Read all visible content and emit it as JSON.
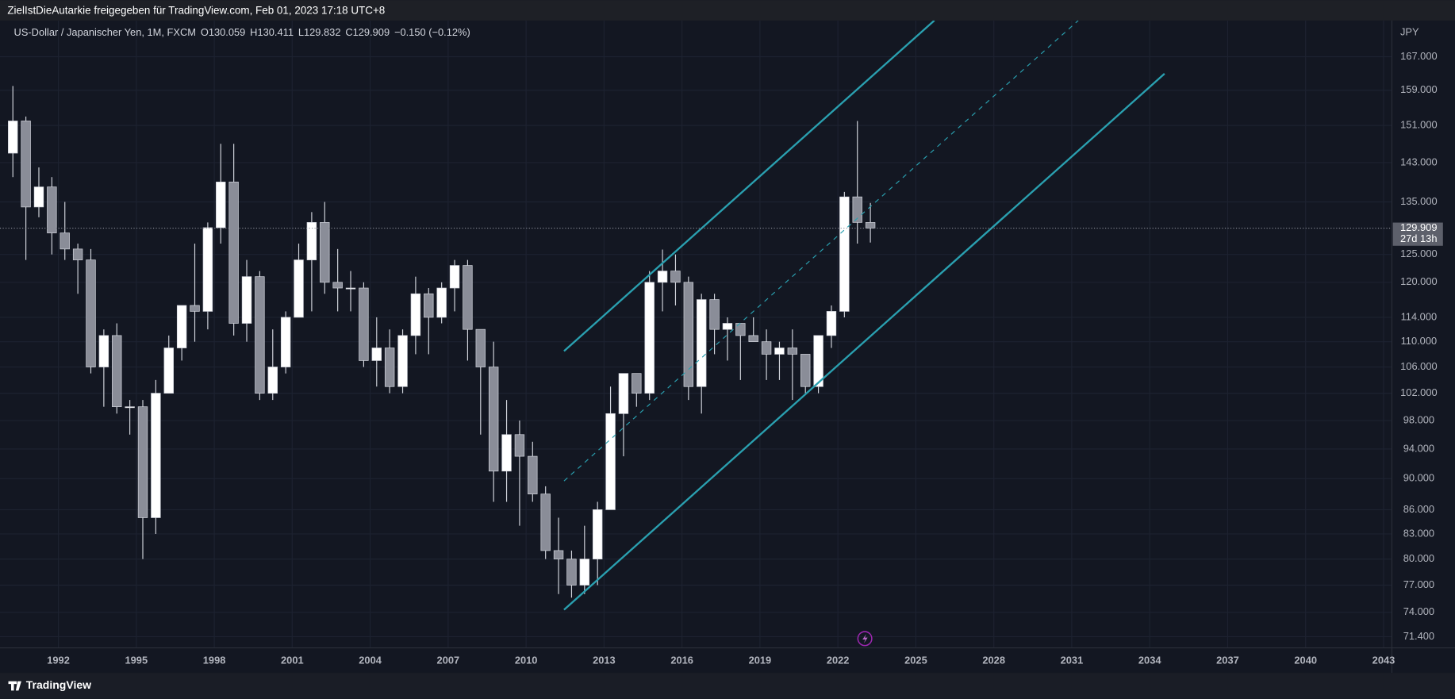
{
  "chart_data": {
    "type": "candlestick",
    "share_text": "ZielIstDieAutarkie freigegeben für TradingView.com, Feb 01, 2023 17:18 UTC+8",
    "symbol": "US-Dollar / Japanischer Yen, 1M, FXCM",
    "ohlc_legend": [
      {
        "label": "O",
        "value": 130.059
      },
      {
        "label": "H",
        "value": 130.411
      },
      {
        "label": "L",
        "value": 129.832
      },
      {
        "label": "C",
        "value": 129.909
      }
    ],
    "change": "−0.150 (−0.12%)",
    "currency": "JPY",
    "last_price": 129.909,
    "countdown": "27d 13h",
    "brand": "TradingView",
    "log_scale": true,
    "grid": true,
    "up_color": "#ffffff",
    "down_color": "#8a8d98",
    "trendline_color": "#2aa0b0",
    "xlim": [
      1990.04,
      2043.32
    ],
    "ylim": [
      70.24,
      176.1
    ],
    "xticks": [
      1992,
      1995,
      1998,
      2001,
      2004,
      2007,
      2010,
      2013,
      2016,
      2019,
      2022,
      2025,
      2028,
      2031,
      2034,
      2037,
      2040,
      2043
    ],
    "yticks": [
      {
        "value": 71.4,
        "label": "71.400"
      },
      {
        "value": 74,
        "label": "74.000"
      },
      {
        "value": 77,
        "label": "77.000"
      },
      {
        "value": 80,
        "label": "80.000"
      },
      {
        "value": 83,
        "label": "83.000"
      },
      {
        "value": 86,
        "label": "86.000"
      },
      {
        "value": 90,
        "label": "90.000"
      },
      {
        "value": 94,
        "label": "94.000"
      },
      {
        "value": 98,
        "label": "98.000"
      },
      {
        "value": 102,
        "label": "102.000"
      },
      {
        "value": 106,
        "label": "106.000"
      },
      {
        "value": 110,
        "label": "110.000"
      },
      {
        "value": 114,
        "label": "114.000"
      },
      {
        "value": 120,
        "label": "120.000"
      },
      {
        "value": 125,
        "label": "125.000"
      },
      {
        "value": 135,
        "label": "135.000"
      },
      {
        "value": 143,
        "label": "143.000"
      },
      {
        "value": 151,
        "label": "151.000"
      },
      {
        "value": 159,
        "label": "159.000"
      },
      {
        "value": 167,
        "label": "167.000"
      }
    ],
    "x": [
      1990,
      1990.5,
      1991,
      1991.5,
      1992,
      1992.5,
      1993,
      1993.5,
      1994,
      1994.5,
      1995,
      1995.5,
      1996,
      1996.5,
      1997,
      1997.5,
      1998,
      1998.5,
      1999,
      1999.5,
      2000,
      2000.5,
      2001,
      2001.5,
      2002,
      2002.5,
      2003,
      2003.5,
      2004,
      2004.5,
      2005,
      2005.5,
      2006,
      2006.5,
      2007,
      2007.5,
      2008,
      2008.5,
      2009,
      2009.5,
      2010,
      2010.5,
      2011,
      2011.5,
      2012,
      2012.5,
      2013,
      2013.5,
      2014,
      2014.5,
      2015,
      2015.5,
      2016,
      2016.5,
      2017,
      2017.5,
      2018,
      2018.5,
      2019,
      2019.5,
      2020,
      2020.5,
      2021,
      2021.5,
      2022,
      2022.5,
      2023
    ],
    "open": [
      145,
      152,
      134,
      138,
      129,
      126,
      124,
      106,
      111,
      100,
      100,
      85,
      102,
      109,
      116,
      115,
      130,
      139,
      113,
      121,
      102,
      106,
      114,
      124,
      131,
      120,
      119,
      119,
      107,
      109,
      103,
      111,
      118,
      114,
      119,
      123,
      112,
      106,
      91,
      96,
      93,
      88,
      81,
      80,
      77,
      80,
      86,
      99,
      105,
      102,
      120,
      122,
      120,
      103,
      117,
      112,
      113,
      111,
      110,
      108,
      109,
      108,
      103,
      111,
      115,
      136,
      131
    ],
    "high": [
      160,
      153,
      142,
      140,
      135,
      127,
      126,
      112,
      113,
      101,
      101,
      104,
      111,
      116,
      127,
      131,
      147,
      147,
      124,
      122,
      112,
      115,
      127,
      133,
      135,
      126,
      122,
      120,
      114,
      112,
      112,
      121,
      119,
      120,
      124,
      124,
      112,
      110,
      101,
      98,
      95,
      89,
      85,
      81,
      84,
      87,
      103,
      105,
      105,
      122,
      125.9,
      125,
      121,
      118,
      118,
      114,
      113,
      114,
      112,
      110,
      112,
      108,
      111,
      116,
      137,
      152,
      134.8
    ],
    "low": [
      140,
      124,
      132,
      125,
      124,
      118,
      105,
      100,
      99,
      96,
      80,
      83,
      102,
      107,
      110,
      112,
      127,
      111,
      110,
      101,
      101,
      105,
      114,
      115,
      118,
      115,
      115,
      106,
      103,
      102,
      102,
      108,
      108,
      113,
      115,
      107,
      96,
      87,
      87,
      84,
      87,
      80,
      76,
      75.6,
      76,
      77,
      86,
      93,
      100,
      101,
      115,
      116,
      101,
      99,
      108,
      107,
      104,
      110,
      104,
      104,
      101,
      102,
      102,
      109,
      114,
      127,
      127.2
    ],
    "close": [
      152,
      134,
      138,
      129,
      126,
      124,
      106,
      111,
      100,
      100,
      85,
      102,
      109,
      116,
      115,
      130,
      139,
      113,
      121,
      102,
      106,
      114,
      124,
      131,
      120,
      119,
      119,
      107,
      109,
      103,
      111,
      118,
      114,
      119,
      123,
      112,
      106,
      91,
      96,
      93,
      88,
      81,
      80,
      77,
      80,
      86,
      99,
      105,
      102,
      120,
      122,
      120,
      103,
      117,
      112,
      113,
      111,
      110,
      108,
      109,
      108,
      103,
      111,
      115,
      136,
      131,
      129.909
    ],
    "trendlines": [
      {
        "x": [
          2011.46,
          2025.71
        ],
        "y": [
          108.5,
          176.1
        ],
        "style": "solid"
      },
      {
        "x": [
          2011.46,
          2031.25
        ],
        "y": [
          89.7,
          176.1
        ],
        "style": "dashed"
      },
      {
        "x": [
          2011.46,
          2034.57
        ],
        "y": [
          74.27,
          162.9
        ],
        "style": "solid"
      }
    ]
  }
}
